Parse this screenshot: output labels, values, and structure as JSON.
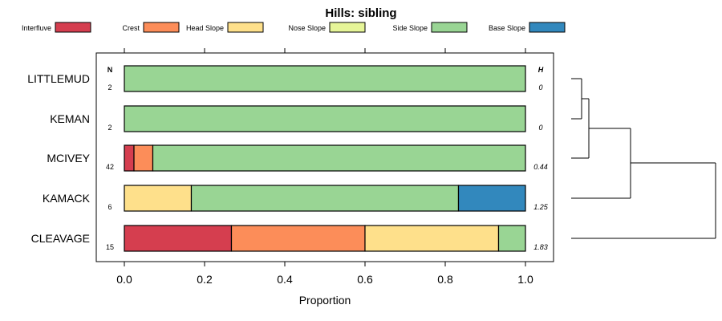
{
  "chart_data": {
    "type": "bar",
    "stacked": true,
    "orientation": "horizontal",
    "title": "Hills: sibling",
    "xlabel": "Proportion",
    "xlim": [
      0,
      1
    ],
    "x_ticks": [
      "0.0",
      "0.2",
      "0.4",
      "0.6",
      "0.8",
      "1.0"
    ],
    "x_tick_values": [
      0,
      0.2,
      0.4,
      0.6,
      0.8,
      1.0
    ],
    "n_header": "N",
    "h_header": "H",
    "legend": [
      {
        "name": "Interfluve",
        "color": "#d53e4f"
      },
      {
        "name": "Crest",
        "color": "#fc8d59"
      },
      {
        "name": "Head Slope",
        "color": "#fee08b"
      },
      {
        "name": "Nose Slope",
        "color": "#e6f598"
      },
      {
        "name": "Side Slope",
        "color": "#99d594"
      },
      {
        "name": "Base Slope",
        "color": "#3288bd"
      }
    ],
    "categories": [
      "LITTLEMUD",
      "KEMAN",
      "MCIVEY",
      "KAMACK",
      "CLEAVAGE"
    ],
    "n_values": [
      "2",
      "2",
      "42",
      "6",
      "15"
    ],
    "h_values": [
      "0",
      "0",
      "0.44",
      "1.25",
      "1.83"
    ],
    "series": [
      {
        "name": "Interfluve",
        "values": [
          0,
          0,
          0.024,
          0,
          0.267
        ]
      },
      {
        "name": "Crest",
        "values": [
          0,
          0,
          0.047,
          0,
          0.333
        ]
      },
      {
        "name": "Head Slope",
        "values": [
          0,
          0,
          0,
          0.167,
          0.333
        ]
      },
      {
        "name": "Nose Slope",
        "values": [
          0,
          0,
          0,
          0,
          0
        ]
      },
      {
        "name": "Side Slope",
        "values": [
          1,
          1,
          0.929,
          0.666,
          0.067
        ]
      },
      {
        "name": "Base Slope",
        "values": [
          0,
          0,
          0,
          0.167,
          0
        ]
      }
    ],
    "dendrogram": "hierarchical clustering of the five series"
  }
}
